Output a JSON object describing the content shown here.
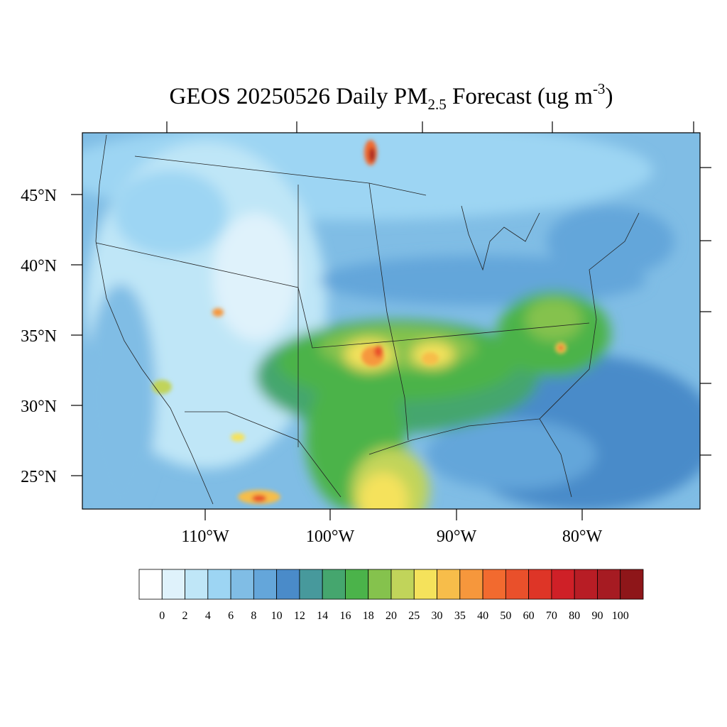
{
  "title": {
    "main": "GEOS 20250526 Daily PM",
    "subscript": "2.5",
    "rest": " Forecast (ug m",
    "superscript": "-3",
    "close": ")"
  },
  "latitude_labels": [
    "45°N",
    "40°N",
    "35°N",
    "30°N",
    "25°N"
  ],
  "longitude_labels": [
    "110°W",
    "100°W",
    "90°W",
    "80°W"
  ],
  "colorbar": {
    "colors": [
      "#ffffff",
      "#dff2fb",
      "#bfe6f7",
      "#9dd5f3",
      "#80bde5",
      "#64a6da",
      "#4a8bc9",
      "#47999c",
      "#45a66e",
      "#4bb34a",
      "#85c24d",
      "#c1d45a",
      "#f5e25b",
      "#f7bd4a",
      "#f6973c",
      "#f26a2f",
      "#e9502b",
      "#de3527",
      "#cf2027",
      "#b81d25",
      "#a61b22",
      "#8e1619"
    ],
    "labels": [
      "0",
      "2",
      "4",
      "6",
      "8",
      "10",
      "12",
      "14",
      "16",
      "18",
      "20",
      "25",
      "30",
      "35",
      "40",
      "50",
      "60",
      "70",
      "80",
      "90",
      "100"
    ]
  }
}
